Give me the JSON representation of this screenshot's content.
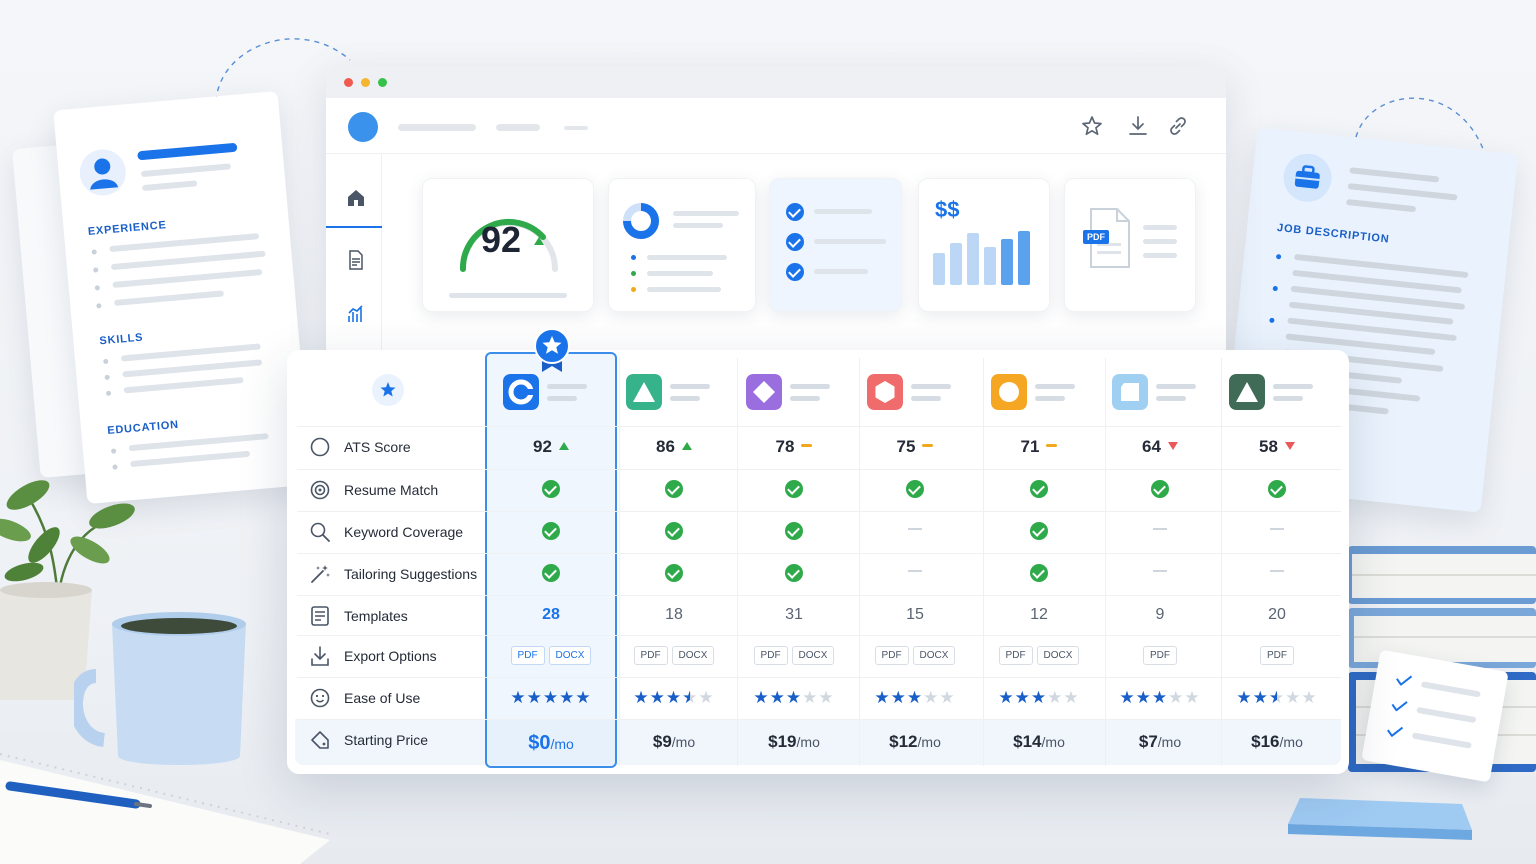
{
  "resume_doc": {
    "sections": [
      "EXPERIENCE",
      "SKILLS",
      "EDUCATION"
    ]
  },
  "job_doc": {
    "title": "JOB DESCRIPTION"
  },
  "dashboard": {
    "score_card": {
      "score": "92"
    },
    "budget_card": {
      "symbol": "$$"
    },
    "file_card": {
      "badge": "PDF"
    },
    "icons": {
      "favorite": "star-icon",
      "download": "download-icon",
      "share": "link-icon"
    }
  },
  "comparison": {
    "features": [
      {
        "label": "ATS Score",
        "icon": "gauge-icon"
      },
      {
        "label": "Resume Match",
        "icon": "target-icon"
      },
      {
        "label": "Keyword Coverage",
        "icon": "search-icon"
      },
      {
        "label": "Tailoring Suggestions",
        "icon": "magic-wand-icon"
      },
      {
        "label": "Templates",
        "icon": "template-icon"
      },
      {
        "label": "Export Options",
        "icon": "export-icon"
      },
      {
        "label": "Ease of Use",
        "icon": "smiley-icon"
      },
      {
        "label": "Starting Price",
        "icon": "tag-icon"
      }
    ],
    "tools": [
      {
        "color": "#1a73e8",
        "shape": "letter-c",
        "ats": "92",
        "trend": "up",
        "match": true,
        "keywords": true,
        "tailoring": true,
        "templates": "28",
        "exports": [
          "PDF",
          "DOCX"
        ],
        "rating": 5,
        "price": "$0",
        "per": "/mo",
        "highlight": true
      },
      {
        "color": "#36b38a",
        "shape": "triangle",
        "ats": "86",
        "trend": "up",
        "match": true,
        "keywords": true,
        "tailoring": true,
        "templates": "18",
        "exports": [
          "PDF",
          "DOCX"
        ],
        "rating": 3.5,
        "price": "$9",
        "per": "/mo",
        "highlight": false
      },
      {
        "color": "#9b6ee0",
        "shape": "diamond",
        "ats": "78",
        "trend": "flat",
        "match": true,
        "keywords": true,
        "tailoring": true,
        "templates": "31",
        "exports": [
          "PDF",
          "DOCX"
        ],
        "rating": 3,
        "price": "$19",
        "per": "/mo",
        "highlight": false
      },
      {
        "color": "#f06b6b",
        "shape": "hexagon",
        "ats": "75",
        "trend": "flat",
        "match": true,
        "keywords": false,
        "tailoring": false,
        "templates": "15",
        "exports": [
          "PDF",
          "DOCX"
        ],
        "rating": 3,
        "price": "$12",
        "per": "/mo",
        "highlight": false
      },
      {
        "color": "#f5a623",
        "shape": "circle",
        "ats": "71",
        "trend": "flat",
        "match": true,
        "keywords": true,
        "tailoring": true,
        "templates": "12",
        "exports": [
          "PDF",
          "DOCX"
        ],
        "rating": 3,
        "price": "$14",
        "per": "/mo",
        "highlight": false
      },
      {
        "color": "#9fd0f2",
        "shape": "rounded-square",
        "ats": "64",
        "trend": "down",
        "match": true,
        "keywords": false,
        "tailoring": false,
        "templates": "9",
        "exports": [
          "PDF"
        ],
        "rating": 3,
        "price": "$7",
        "per": "/mo",
        "highlight": false
      },
      {
        "color": "#3f6b57",
        "shape": "triangle",
        "ats": "58",
        "trend": "down",
        "match": true,
        "keywords": false,
        "tailoring": false,
        "templates": "20",
        "exports": [
          "PDF"
        ],
        "rating": 2.5,
        "price": "$16",
        "per": "/mo",
        "highlight": false
      }
    ]
  },
  "colors": {
    "accent": "#1a73e8",
    "positive": "#2eaa4a",
    "neutral": "#f2a81d",
    "negative": "#e85a5a"
  }
}
